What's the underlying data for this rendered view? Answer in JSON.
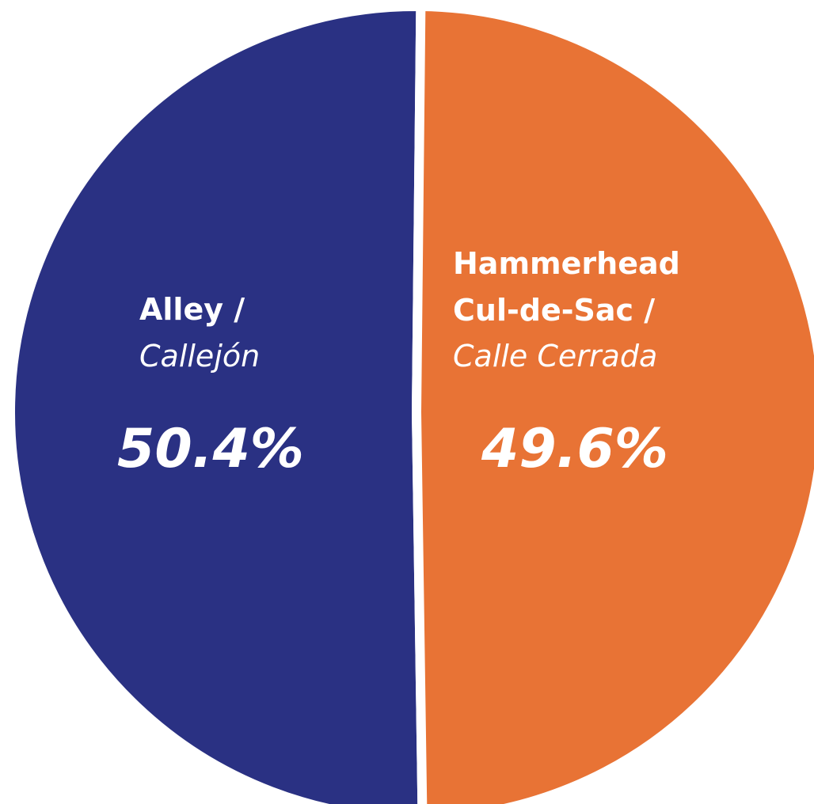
{
  "chart_data": {
    "type": "pie",
    "title": "",
    "slices": [
      {
        "label": "Alley / Callejón",
        "label_bold": "Alley /",
        "label_lines_bold": [
          "Alley /"
        ],
        "label_italic": "Callejón",
        "value": 50.4,
        "value_label": "50.4%",
        "color": "#2a3183"
      },
      {
        "label": "Hammerhead Cul-de-Sac / Calle Cerrada",
        "label_bold": "Hammerhead Cul-de-Sac /",
        "label_lines_bold": [
          "Hammerhead",
          "Cul-de-Sac /"
        ],
        "label_italic": "Calle Cerrada",
        "value": 49.6,
        "value_label": "49.6%",
        "color": "#e87335"
      }
    ],
    "legend": "none",
    "labels_position": "inside"
  }
}
